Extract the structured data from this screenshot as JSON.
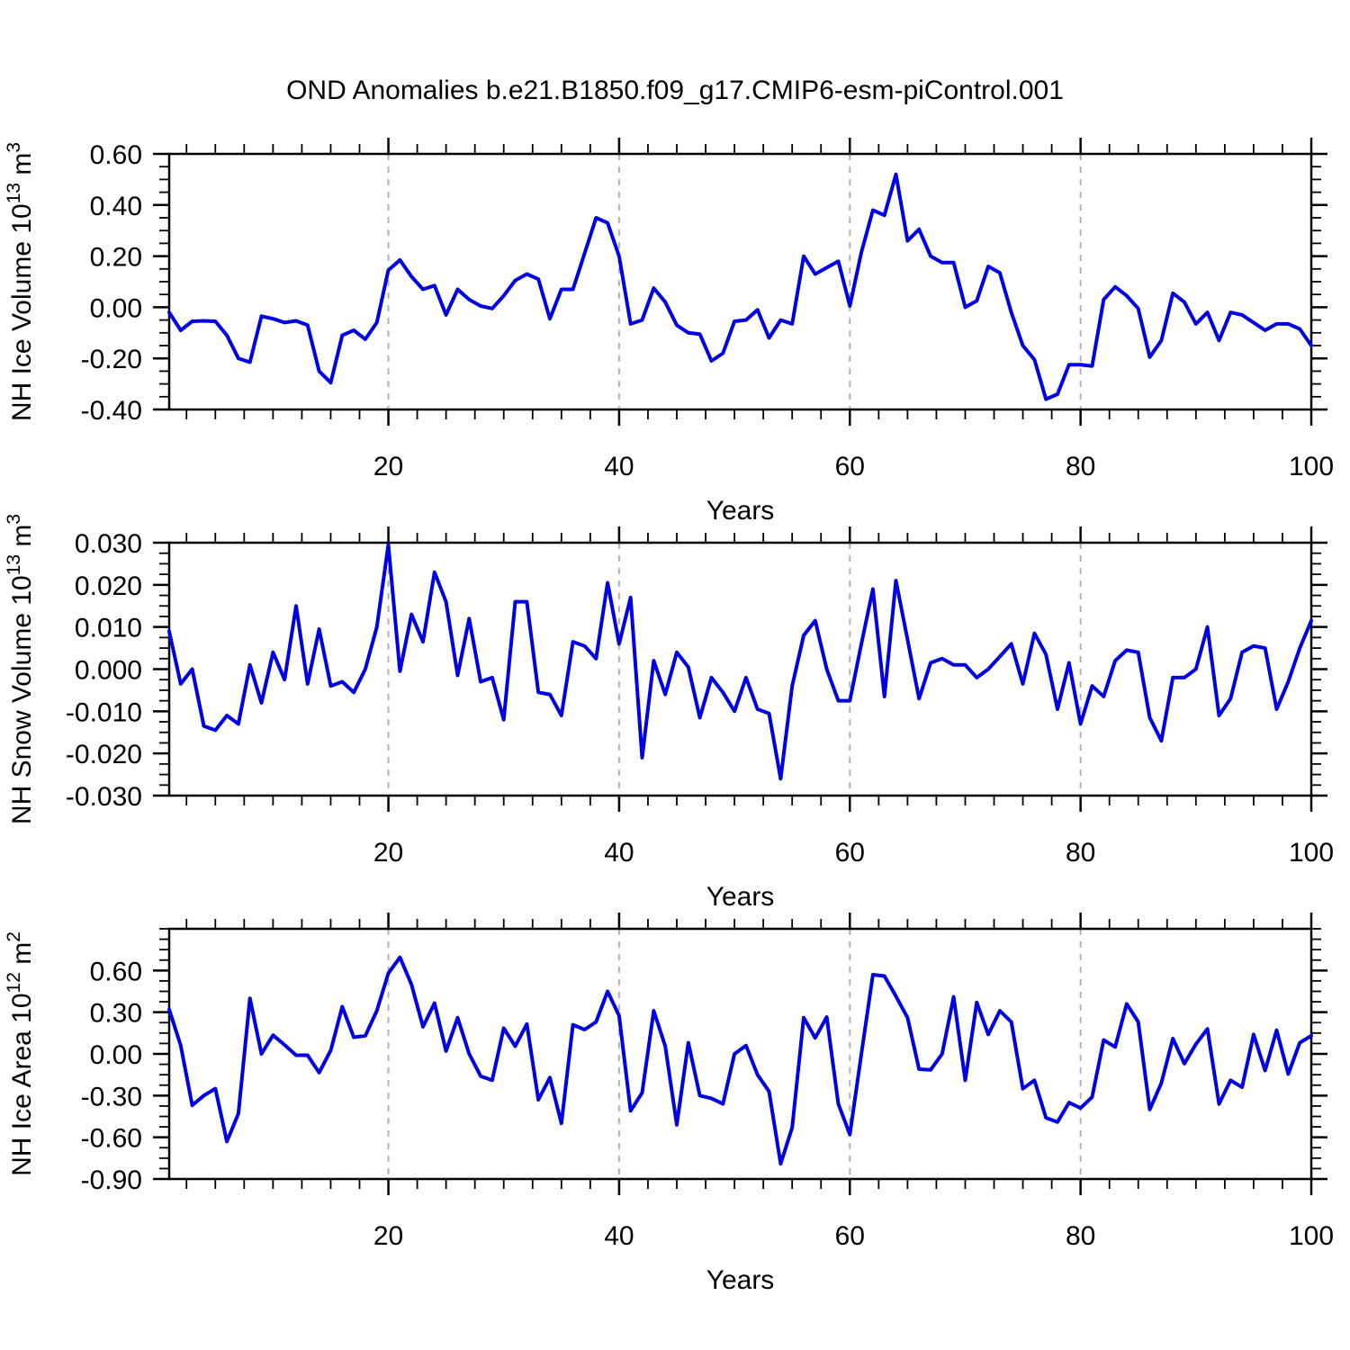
{
  "title": "OND Anomalies b.e21.B1850.f09_g17.CMIP6-esm-piControl.001",
  "colors": {
    "line": "#0000E6",
    "axis": "#000000",
    "gridline": "#B3B3B3",
    "background": "#FFFFFF"
  },
  "chart_data": [
    {
      "id": "nh-ice-volume",
      "name": "NH Ice Volume",
      "type": "line",
      "xlabel": "Years",
      "ylabel": "NH Ice Volume 10^13 m^3",
      "ylabel_parts": [
        {
          "text": "NH Ice Volume 10"
        },
        {
          "text": "13",
          "sup": true
        },
        {
          "text": " m"
        },
        {
          "text": "3",
          "sup": true
        }
      ],
      "xlim": [
        1,
        100
      ],
      "ylim": [
        -0.4,
        0.6
      ],
      "xticks": {
        "values": [
          20,
          40,
          60,
          80,
          100
        ],
        "labels": [
          "20",
          "40",
          "60",
          "80",
          "100"
        ],
        "minor_step": 2.5
      },
      "yticks": {
        "values": [
          0.6,
          0.4,
          0.2,
          0.0,
          -0.2,
          -0.4
        ],
        "labels": [
          "0.60",
          "0.40",
          "0.20",
          "0.00",
          "-0.20",
          "-0.40"
        ],
        "minor_step": 0.05
      },
      "gridlines_x": [
        20,
        40,
        60,
        80
      ],
      "x_start_year": 1,
      "values": [
        -0.02,
        -0.09,
        -0.055,
        -0.053,
        -0.055,
        -0.11,
        -0.2,
        -0.215,
        -0.035,
        -0.045,
        -0.06,
        -0.053,
        -0.07,
        -0.25,
        -0.295,
        -0.11,
        -0.09,
        -0.125,
        -0.06,
        0.145,
        0.185,
        0.12,
        0.07,
        0.085,
        -0.03,
        0.07,
        0.03,
        0.005,
        -0.005,
        0.045,
        0.105,
        0.13,
        0.11,
        -0.045,
        0.07,
        0.07,
        0.21,
        0.35,
        0.33,
        0.2,
        -0.065,
        -0.05,
        0.075,
        0.02,
        -0.07,
        -0.1,
        -0.105,
        -0.21,
        -0.18,
        -0.055,
        -0.05,
        -0.01,
        -0.12,
        -0.05,
        -0.065,
        0.2,
        0.13,
        0.155,
        0.18,
        0.005,
        0.215,
        0.38,
        0.36,
        0.52,
        0.26,
        0.305,
        0.2,
        0.175,
        0.175,
        0.0,
        0.025,
        0.16,
        0.135,
        -0.02,
        -0.15,
        -0.205,
        -0.36,
        -0.34,
        -0.225,
        -0.225,
        -0.23,
        0.03,
        0.08,
        0.045,
        -0.005,
        -0.195,
        -0.13,
        0.055,
        0.02,
        -0.065,
        -0.02,
        -0.13,
        -0.02,
        -0.03,
        -0.06,
        -0.09,
        -0.065,
        -0.065,
        -0.085,
        -0.15
      ]
    },
    {
      "id": "nh-snow-volume",
      "name": "NH Snow Volume",
      "type": "line",
      "xlabel": "Years",
      "ylabel": "NH Snow Volume 10^13 m^3",
      "ylabel_parts": [
        {
          "text": "NH Snow Volume 10"
        },
        {
          "text": "13",
          "sup": true
        },
        {
          "text": " m"
        },
        {
          "text": "3",
          "sup": true
        }
      ],
      "xlim": [
        1,
        100
      ],
      "ylim": [
        -0.03,
        0.03
      ],
      "xticks": {
        "values": [
          20,
          40,
          60,
          80,
          100
        ],
        "labels": [
          "20",
          "40",
          "60",
          "80",
          "100"
        ],
        "minor_step": 2.5
      },
      "yticks": {
        "values": [
          0.03,
          0.02,
          0.01,
          0.0,
          -0.01,
          -0.02,
          -0.03
        ],
        "labels": [
          "0.030",
          "0.020",
          "0.010",
          "0.000",
          "-0.010",
          "-0.020",
          "-0.030"
        ],
        "minor_step": 0.0025
      },
      "gridlines_x": [
        20,
        40,
        60,
        80
      ],
      "x_start_year": 1,
      "values": [
        0.009,
        -0.0035,
        0.0,
        -0.0135,
        -0.0145,
        -0.011,
        -0.013,
        0.001,
        -0.008,
        0.004,
        -0.0025,
        0.015,
        -0.0035,
        0.0095,
        -0.004,
        -0.003,
        -0.0055,
        0.0,
        0.01,
        0.0295,
        -0.0005,
        0.013,
        0.0065,
        0.023,
        0.016,
        -0.0015,
        0.012,
        -0.003,
        -0.002,
        -0.012,
        0.016,
        0.016,
        -0.0055,
        -0.006,
        -0.011,
        0.0065,
        0.0055,
        0.0025,
        0.0205,
        0.006,
        0.017,
        -0.021,
        0.002,
        -0.006,
        0.004,
        0.0005,
        -0.0115,
        -0.002,
        -0.0055,
        -0.01,
        -0.002,
        -0.0095,
        -0.0105,
        -0.026,
        -0.004,
        0.008,
        0.0115,
        0.0,
        -0.0075,
        -0.0075,
        0.006,
        0.019,
        -0.0065,
        0.021,
        0.007,
        -0.007,
        0.0015,
        0.0025,
        0.001,
        0.001,
        -0.002,
        0.0,
        0.003,
        0.006,
        -0.0035,
        0.0085,
        0.0035,
        -0.0095,
        0.0015,
        -0.013,
        -0.004,
        -0.0065,
        0.002,
        0.0045,
        0.004,
        -0.0115,
        -0.017,
        -0.002,
        -0.002,
        0.0,
        0.01,
        -0.011,
        -0.007,
        0.004,
        0.0055,
        0.005,
        -0.0095,
        -0.003,
        0.005,
        0.0115
      ]
    },
    {
      "id": "nh-ice-area",
      "name": "NH Ice Area",
      "type": "line",
      "xlabel": "Years",
      "ylabel": "NH Ice Area 10^12 m^2",
      "ylabel_parts": [
        {
          "text": "NH Ice Area 10"
        },
        {
          "text": "12",
          "sup": true
        },
        {
          "text": " m"
        },
        {
          "text": "2",
          "sup": true
        }
      ],
      "xlim": [
        1,
        100
      ],
      "ylim": [
        -0.9,
        0.9
      ],
      "xticks": {
        "values": [
          20,
          40,
          60,
          80,
          100
        ],
        "labels": [
          "20",
          "40",
          "60",
          "80",
          "100"
        ],
        "minor_step": 2.5
      },
      "yticks": {
        "values": [
          0.6,
          0.3,
          0.0,
          -0.3,
          -0.6,
          -0.9
        ],
        "labels": [
          "0.60",
          "0.30",
          "0.00",
          "-0.30",
          "-0.60",
          "-0.90"
        ],
        "minor_step": 0.075
      },
      "gridlines_x": [
        20,
        40,
        60,
        80
      ],
      "x_start_year": 1,
      "values": [
        0.32,
        0.06,
        -0.37,
        -0.3,
        -0.25,
        -0.63,
        -0.43,
        0.4,
        0.0,
        0.135,
        0.065,
        -0.01,
        -0.01,
        -0.135,
        0.025,
        0.34,
        0.12,
        0.13,
        0.31,
        0.58,
        0.695,
        0.5,
        0.195,
        0.365,
        0.02,
        0.26,
        0.0,
        -0.16,
        -0.19,
        0.185,
        0.055,
        0.215,
        -0.33,
        -0.17,
        -0.5,
        0.21,
        0.175,
        0.23,
        0.45,
        0.275,
        -0.41,
        -0.28,
        0.31,
        0.055,
        -0.51,
        0.08,
        -0.3,
        -0.32,
        -0.36,
        0.0,
        0.06,
        -0.15,
        -0.27,
        -0.79,
        -0.53,
        0.26,
        0.115,
        0.265,
        -0.36,
        -0.58,
        0.0,
        0.57,
        0.56,
        0.415,
        0.26,
        -0.11,
        -0.115,
        0.0,
        0.41,
        -0.19,
        0.37,
        0.14,
        0.31,
        0.23,
        -0.25,
        -0.19,
        -0.46,
        -0.49,
        -0.35,
        -0.39,
        -0.31,
        0.1,
        0.05,
        0.36,
        0.23,
        -0.4,
        -0.21,
        0.11,
        -0.07,
        0.07,
        0.18,
        -0.36,
        -0.19,
        -0.24,
        0.14,
        -0.12,
        0.17,
        -0.145,
        0.08,
        0.13
      ]
    }
  ]
}
